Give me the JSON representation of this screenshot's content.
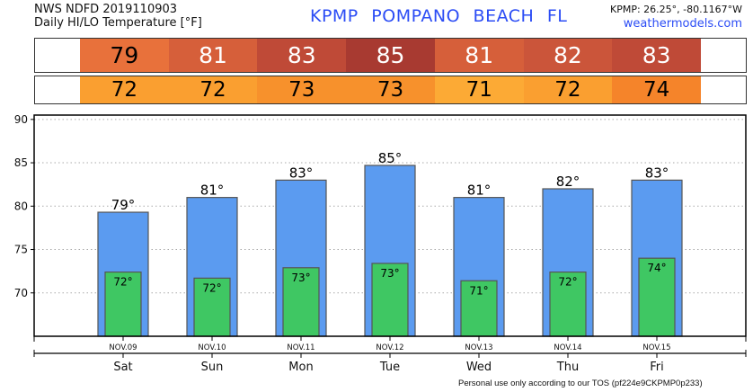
{
  "header": {
    "line1": "NWS NDFD 2019110903",
    "line2": "Daily HI/LO Temperature [°F]",
    "station": "KPMP  POMPANO BEACH  FL",
    "coords": "KPMP: 26.25°, -80.1167°W",
    "site": "weathermodels.com"
  },
  "hi_row": [
    {
      "v": "79",
      "bg": "#e8713b",
      "fg": "#000"
    },
    {
      "v": "81",
      "bg": "#d65f3a",
      "fg": "#fff"
    },
    {
      "v": "83",
      "bg": "#bf4a37",
      "fg": "#fff"
    },
    {
      "v": "85",
      "bg": "#a83a31",
      "fg": "#fff"
    },
    {
      "v": "81",
      "bg": "#d65f3a",
      "fg": "#fff"
    },
    {
      "v": "82",
      "bg": "#cb553a",
      "fg": "#fff"
    },
    {
      "v": "83",
      "bg": "#bf4a37",
      "fg": "#fff"
    }
  ],
  "lo_row": [
    {
      "v": "72",
      "bg": "#fa9f30",
      "fg": "#000"
    },
    {
      "v": "72",
      "bg": "#fa9f30",
      "fg": "#000"
    },
    {
      "v": "73",
      "bg": "#f7912c",
      "fg": "#000"
    },
    {
      "v": "73",
      "bg": "#f7912c",
      "fg": "#000"
    },
    {
      "v": "71",
      "bg": "#fcaa35",
      "fg": "#000"
    },
    {
      "v": "72",
      "bg": "#fa9f30",
      "fg": "#000"
    },
    {
      "v": "74",
      "bg": "#f5842a",
      "fg": "#000"
    }
  ],
  "chart_data": {
    "type": "bar",
    "categories": [
      "NOV.09",
      "NOV.10",
      "NOV.11",
      "NOV.12",
      "NOV.13",
      "NOV.14",
      "NOV.15"
    ],
    "days": [
      "Sat",
      "Sun",
      "Mon",
      "Tue",
      "Wed",
      "Thu",
      "Fri"
    ],
    "series": [
      {
        "name": "High",
        "color": "#5b9bf0",
        "values": [
          79.3,
          81,
          83,
          84.7,
          81,
          82,
          83
        ],
        "labels": [
          "79°",
          "81°",
          "83°",
          "85°",
          "81°",
          "82°",
          "83°"
        ]
      },
      {
        "name": "Low",
        "color": "#3fc763",
        "values": [
          72.4,
          71.7,
          72.9,
          73.4,
          71.4,
          72.4,
          74
        ],
        "labels": [
          "72°",
          "72°",
          "73°",
          "73°",
          "71°",
          "72°",
          "74°"
        ]
      }
    ],
    "yticks": [
      70,
      75,
      80,
      85,
      90
    ],
    "ylim": [
      65,
      90.5
    ],
    "grid": true
  },
  "footer": "Personal use only according to our TOS (pf224e9CKPMP0p233)"
}
